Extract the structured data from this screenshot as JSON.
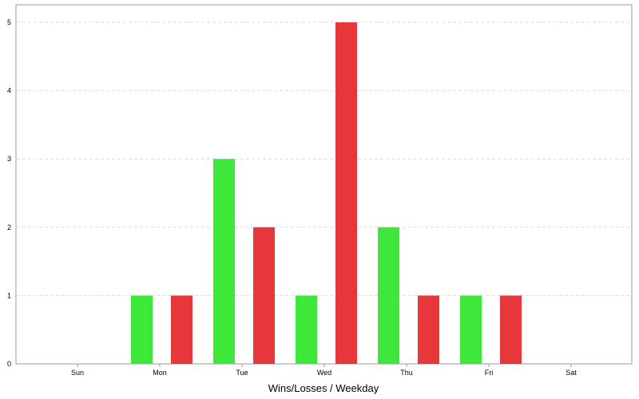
{
  "chart_data": {
    "type": "bar",
    "title": "",
    "xlabel": "Wins/Losses / Weekday",
    "ylabel": "",
    "categories": [
      "Sun",
      "Mon",
      "Tue",
      "Wed",
      "Thu",
      "Fri",
      "Sat"
    ],
    "series": [
      {
        "values": [
          0,
          1,
          3,
          1,
          2,
          1,
          0
        ],
        "color": "#3ee83a"
      },
      {
        "values": [
          0,
          1,
          2,
          5,
          1,
          1,
          0
        ],
        "color": "#e8373a"
      }
    ],
    "ylim": [
      0,
      5
    ],
    "yticks": [
      "0",
      "1",
      "2",
      "3",
      "4",
      "5"
    ],
    "grid": true,
    "legend": "none"
  }
}
